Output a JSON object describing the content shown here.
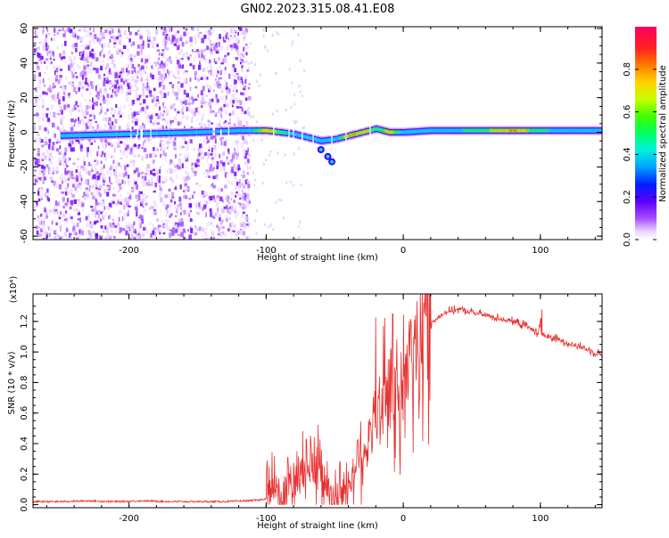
{
  "title": "GN02.2023.315.08.41.E08",
  "chart_data": [
    {
      "type": "heatmap",
      "xlabel": "Height of straight line (km)",
      "ylabel": "Frequency (Hz)",
      "xlim": [
        -270,
        145
      ],
      "ylim": [
        -62,
        61
      ],
      "x_ticks": [
        -200,
        -100,
        0,
        100
      ],
      "x_tick_labels": [
        "-200",
        "-100",
        "0",
        "100"
      ],
      "y_ticks": [
        -60,
        -40,
        -20,
        0,
        20,
        40,
        60
      ],
      "y_tick_labels": [
        "-60",
        "-40",
        "-20",
        "0",
        "20",
        "40",
        "60"
      ],
      "noise_region_x": [
        -270,
        -118
      ],
      "ridge": {
        "x": [
          -250,
          -200,
          -150,
          -120,
          -100,
          -80,
          -70,
          -60,
          -50,
          -40,
          -30,
          -20,
          -10,
          0,
          20,
          50,
          80,
          100,
          145
        ],
        "freq": [
          -2,
          -1,
          0,
          1,
          1,
          -1,
          -3,
          -5,
          -4,
          -2,
          0,
          2,
          0,
          0,
          1,
          1,
          1,
          1,
          1
        ],
        "amplitude": [
          0.3,
          0.35,
          0.3,
          0.4,
          0.8,
          0.5,
          0.6,
          0.45,
          0.5,
          0.85,
          0.8,
          0.6,
          0.8,
          0.5,
          0.55,
          0.6,
          0.85,
          0.6,
          0.5
        ]
      },
      "colorbar": {
        "label": "Normalized spectral amplitude",
        "range": [
          0,
          1
        ],
        "ticks": [
          0.0,
          0.2,
          0.4,
          0.6,
          0.8
        ],
        "tick_labels": [
          "0.0",
          "0.2",
          "0.4",
          "0.6",
          "0.8"
        ]
      },
      "grid": false
    },
    {
      "type": "line",
      "xlabel": "Height of straight line (km)",
      "ylabel": "SNR (10 * v/v)",
      "y_multiplier": "(x10⁴)",
      "xlim": [
        -270,
        145
      ],
      "ylim": [
        -0.02,
        1.38
      ],
      "x_ticks": [
        -200,
        -100,
        0,
        100
      ],
      "x_tick_labels": [
        "-200",
        "-100",
        "0",
        "100"
      ],
      "y_ticks": [
        0.0,
        0.2,
        0.4,
        0.6,
        0.8,
        1.0,
        1.2
      ],
      "y_tick_labels": [
        "0.0",
        "0.2",
        "0.4",
        "0.6",
        "0.8",
        "1.0",
        "1.2"
      ],
      "color": "#e83030",
      "grid": false,
      "series": [
        {
          "x": [
            -270,
            -250,
            -230,
            -210,
            -190,
            -170,
            -150,
            -130,
            -115,
            -105,
            -95,
            -90,
            -85,
            -80,
            -75,
            -70,
            -65,
            -62,
            -60,
            -55,
            -50,
            -45,
            -40,
            -35,
            -30,
            -25,
            -20,
            -15,
            -10,
            -5,
            0,
            5,
            10,
            20,
            30,
            40,
            50,
            60,
            70,
            80,
            90,
            95,
            100,
            105,
            110,
            120,
            130,
            145
          ],
          "y": [
            0.02,
            0.02,
            0.025,
            0.02,
            0.025,
            0.02,
            0.02,
            0.02,
            0.025,
            0.03,
            0.05,
            0.07,
            0.1,
            0.15,
            0.2,
            0.28,
            0.32,
            0.22,
            0.12,
            0.06,
            0.03,
            0.05,
            0.12,
            0.25,
            0.35,
            0.45,
            0.55,
            0.7,
            0.75,
            0.8,
            0.7,
            0.9,
            1.05,
            1.18,
            1.26,
            1.28,
            1.26,
            1.24,
            1.22,
            1.2,
            1.17,
            1.14,
            1.12,
            1.1,
            1.09,
            1.06,
            1.03,
            0.98
          ]
        }
      ]
    }
  ]
}
